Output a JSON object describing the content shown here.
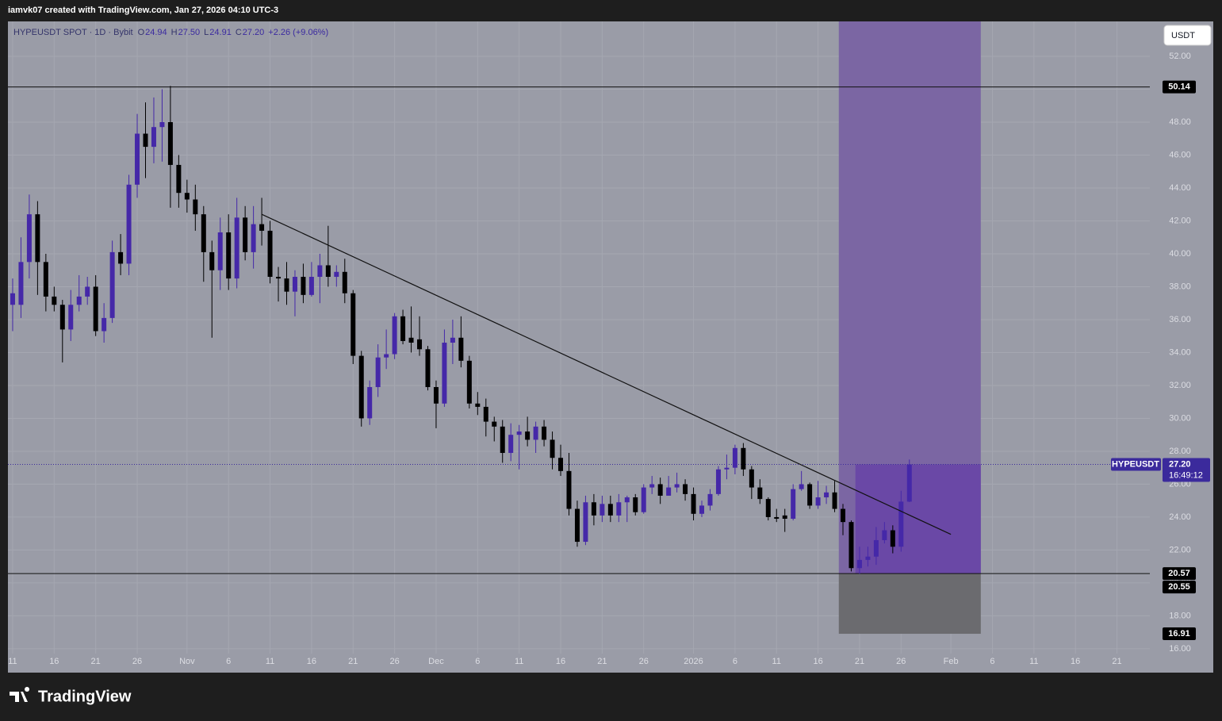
{
  "header": {
    "credit": "iamvk07 created with TradingView.com, Jan 27, 2026 04:10 UTC-3",
    "brand": "TradingView",
    "currency_button": "USDT"
  },
  "chart_data": {
    "type": "candlestick",
    "symbol": "HYPEUSDT SPOT · 1D · Bybit",
    "ohlc_legend": [
      {
        "label": "O",
        "value": "24.94"
      },
      {
        "label": "H",
        "value": "27.50"
      },
      {
        "label": "L",
        "value": "24.91"
      },
      {
        "label": "C",
        "value": "27.20"
      }
    ],
    "change": "+2.26 (+9.06%)",
    "up_color": "#4528a8",
    "down_color": "#000000",
    "open": [
      36.9,
      36.9,
      39.5,
      42.4,
      39.5,
      37.4,
      36.9,
      35.4,
      36.9,
      37.4,
      38.0,
      35.3,
      36.1,
      40.1,
      39.4,
      44.2,
      47.3,
      46.5,
      47.7,
      48.0,
      45.4,
      43.7,
      43.3,
      42.4,
      40.1,
      39.0,
      41.3,
      38.5,
      42.2,
      40.1,
      41.8,
      41.4,
      38.6,
      38.5,
      37.7,
      38.6,
      37.5,
      38.6,
      39.3,
      38.6,
      38.9,
      37.6,
      33.8,
      30.0,
      31.9,
      33.7,
      33.9,
      36.2,
      34.9,
      34.8,
      34.2,
      31.9,
      30.9,
      34.6,
      34.9,
      33.5,
      30.9,
      30.7,
      29.8,
      29.5,
      27.9,
      29.0,
      29.2,
      28.7,
      29.5,
      28.7,
      27.6,
      26.8,
      24.5,
      22.5,
      24.9,
      24.1,
      24.8,
      24.1,
      24.9,
      25.2,
      24.3,
      25.8,
      26.0,
      25.3,
      25.8,
      26.0,
      25.4,
      24.2,
      24.7,
      25.4,
      26.9,
      27.0,
      28.2,
      26.9,
      25.8,
      25.1,
      24.0,
      24.1,
      23.9,
      25.7,
      26.0,
      24.7,
      25.2,
      25.5,
      24.5,
      23.7,
      20.9,
      21.4,
      21.6,
      22.6,
      23.2,
      22.2,
      24.94
    ],
    "high": [
      38.5,
      41.0,
      43.6,
      43.2,
      40.0,
      38.0,
      37.2,
      37.8,
      38.7,
      38.6,
      38.7,
      37.0,
      40.8,
      41.2,
      44.8,
      48.5,
      49.2,
      49.5,
      50.0,
      50.2,
      46.0,
      44.5,
      44.2,
      42.9,
      40.8,
      42.2,
      42.4,
      43.4,
      42.9,
      42.9,
      43.4,
      42.0,
      39.2,
      39.5,
      39.0,
      39.4,
      39.5,
      40.0,
      41.7,
      39.3,
      39.7,
      37.8,
      34.1,
      32.3,
      34.5,
      35.4,
      36.4,
      36.6,
      36.8,
      36.2,
      34.4,
      32.3,
      35.4,
      36.0,
      36.2,
      33.8,
      31.6,
      31.2,
      30.1,
      29.9,
      29.7,
      29.6,
      30.1,
      29.8,
      29.9,
      29.2,
      28.4,
      27.9,
      25.0,
      25.3,
      25.4,
      25.3,
      25.3,
      25.4,
      25.3,
      25.4,
      26.0,
      26.5,
      26.4,
      26.5,
      26.7,
      26.3,
      25.8,
      25.0,
      25.7,
      27.1,
      27.8,
      28.4,
      28.5,
      27.1,
      26.3,
      25.2,
      24.5,
      24.5,
      26.0,
      26.8,
      26.1,
      26.2,
      25.9,
      26.2,
      24.8,
      23.8,
      22.2,
      22.2,
      23.4,
      23.7,
      23.5,
      25.6,
      27.5
    ],
    "low": [
      35.3,
      36.1,
      38.5,
      37.5,
      36.5,
      36.5,
      33.4,
      34.7,
      36.5,
      36.9,
      35.0,
      34.6,
      35.8,
      38.7,
      38.7,
      43.4,
      44.6,
      45.5,
      45.6,
      42.8,
      42.8,
      42.5,
      41.4,
      38.3,
      34.9,
      37.8,
      37.8,
      37.9,
      39.6,
      39.1,
      40.5,
      38.2,
      37.1,
      36.9,
      36.2,
      37.0,
      37.4,
      37.0,
      38.0,
      38.0,
      37.0,
      33.3,
      29.5,
      29.6,
      31.3,
      33.0,
      33.6,
      34.5,
      34.0,
      33.8,
      31.7,
      29.4,
      30.7,
      33.3,
      33.1,
      30.6,
      30.2,
      28.9,
      28.6,
      27.3,
      27.4,
      26.9,
      28.3,
      27.9,
      28.3,
      26.9,
      26.5,
      24.1,
      22.2,
      22.3,
      23.5,
      23.7,
      23.7,
      23.7,
      23.7,
      24.1,
      24.2,
      25.4,
      24.8,
      25.3,
      25.5,
      25.0,
      23.8,
      24.0,
      24.4,
      25.3,
      26.3,
      26.6,
      26.5,
      25.1,
      24.8,
      23.8,
      23.7,
      23.1,
      23.8,
      25.6,
      24.5,
      24.5,
      24.8,
      24.3,
      22.9,
      20.7,
      20.55,
      21.0,
      21.1,
      22.4,
      21.8,
      21.9,
      24.91
    ],
    "close": [
      37.6,
      39.5,
      42.4,
      39.5,
      37.4,
      36.9,
      35.4,
      36.9,
      37.4,
      38.0,
      35.3,
      36.1,
      40.1,
      39.4,
      44.2,
      47.3,
      46.5,
      47.7,
      48.0,
      45.4,
      43.7,
      43.3,
      42.4,
      40.1,
      39.0,
      41.3,
      38.5,
      42.2,
      40.1,
      41.8,
      41.4,
      38.6,
      38.5,
      37.7,
      38.6,
      37.5,
      38.6,
      39.3,
      38.6,
      38.9,
      37.6,
      33.8,
      30.0,
      31.9,
      33.7,
      33.9,
      36.2,
      34.7,
      34.6,
      34.2,
      31.9,
      30.9,
      34.6,
      34.9,
      33.5,
      30.9,
      30.7,
      29.8,
      29.5,
      27.9,
      29.0,
      29.2,
      28.7,
      29.5,
      28.7,
      27.6,
      26.8,
      24.5,
      22.5,
      24.9,
      24.1,
      24.8,
      24.1,
      24.9,
      25.2,
      24.3,
      25.8,
      26.0,
      25.3,
      25.8,
      26.0,
      25.4,
      24.2,
      24.7,
      25.4,
      26.9,
      27.0,
      28.2,
      26.9,
      25.8,
      25.1,
      24.0,
      23.9,
      23.9,
      25.7,
      26.0,
      24.7,
      25.2,
      25.5,
      24.5,
      23.7,
      20.9,
      21.4,
      21.6,
      22.6,
      23.2,
      22.2,
      24.94,
      27.2
    ],
    "xlim": [
      -0.57,
      136.96
    ],
    "xticks": [
      {
        "value": 0,
        "label": "11"
      },
      {
        "value": 5,
        "label": "16"
      },
      {
        "value": 10,
        "label": "21"
      },
      {
        "value": 15,
        "label": "26"
      },
      {
        "value": 21,
        "label": "Nov"
      },
      {
        "value": 26,
        "label": "6"
      },
      {
        "value": 31,
        "label": "11"
      },
      {
        "value": 36,
        "label": "16"
      },
      {
        "value": 41,
        "label": "21"
      },
      {
        "value": 46,
        "label": "26"
      },
      {
        "value": 51,
        "label": "Dec"
      },
      {
        "value": 56,
        "label": "6"
      },
      {
        "value": 61,
        "label": "11"
      },
      {
        "value": 66,
        "label": "16"
      },
      {
        "value": 71,
        "label": "21"
      },
      {
        "value": 76,
        "label": "26"
      },
      {
        "value": 82,
        "label": "2026"
      },
      {
        "value": 87,
        "label": "6"
      },
      {
        "value": 92,
        "label": "11"
      },
      {
        "value": 97,
        "label": "16"
      },
      {
        "value": 102,
        "label": "21"
      },
      {
        "value": 107,
        "label": "26"
      },
      {
        "value": 113,
        "label": "Feb"
      },
      {
        "value": 118,
        "label": "6"
      },
      {
        "value": 123,
        "label": "11"
      },
      {
        "value": 128,
        "label": "16"
      },
      {
        "value": 133,
        "label": "21"
      }
    ],
    "ylim": [
      14.55,
      54.12
    ],
    "yticks": [
      {
        "value": 16,
        "label": "16.00"
      },
      {
        "value": 18,
        "label": "18.00"
      },
      {
        "value": 20,
        "label": "20.00"
      },
      {
        "value": 22,
        "label": "22.00"
      },
      {
        "value": 24,
        "label": "24.00"
      },
      {
        "value": 26,
        "label": "26.00"
      },
      {
        "value": 28,
        "label": "28.00"
      },
      {
        "value": 30,
        "label": "30.00"
      },
      {
        "value": 32,
        "label": "32.00"
      },
      {
        "value": 34,
        "label": "34.00"
      },
      {
        "value": 36,
        "label": "36.00"
      },
      {
        "value": 38,
        "label": "38.00"
      },
      {
        "value": 40,
        "label": "40.00"
      },
      {
        "value": 42,
        "label": "42.00"
      },
      {
        "value": 44,
        "label": "44.00"
      },
      {
        "value": 46,
        "label": "46.00"
      },
      {
        "value": 48,
        "label": "48.00"
      },
      {
        "value": 50,
        "label": "50.00"
      },
      {
        "value": 52,
        "label": "52.00"
      }
    ],
    "grid": true,
    "horizontal_lines": [
      50.14,
      20.57
    ],
    "trendline": {
      "x": [
        30,
        113
      ],
      "y": [
        42.4,
        22.95
      ]
    },
    "position": {
      "entry": 20.57,
      "stop": 16.91,
      "target": 54.12,
      "x": [
        99.5,
        116.6
      ],
      "filled_from": 101.5
    },
    "low_marker": 20.55,
    "last_price": {
      "name": "HYPEUSDT",
      "value": 27.2,
      "label": "27.20",
      "countdown": "16:49:12"
    }
  }
}
